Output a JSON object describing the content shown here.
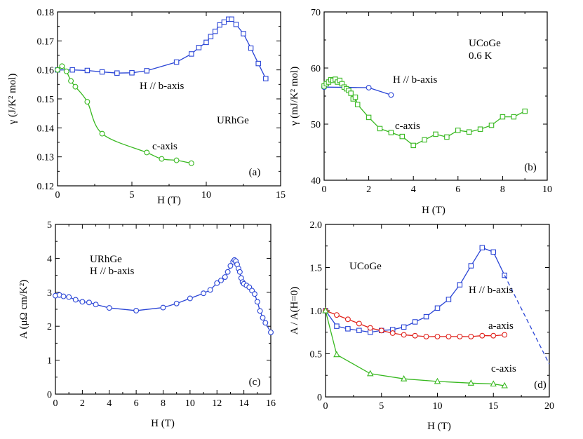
{
  "colors": {
    "blue": "#2a45d6",
    "green": "#37b81f",
    "red": "#e0211b",
    "axis": "#000000"
  },
  "chart_data": [
    {
      "panel": "a",
      "type": "line",
      "xlabel": "H (T)",
      "ylabel": "γ  (J/K² mol)",
      "xlim": [
        0,
        15
      ],
      "ylim": [
        0.12,
        0.18
      ],
      "xticks": [
        "0",
        "5",
        "10",
        "15"
      ],
      "yticks": [
        "0.12",
        "0.13",
        "0.14",
        "0.15",
        "0.16",
        "0.17",
        "0.18"
      ],
      "panel_label": "(a)",
      "annotations": [
        "URhGe",
        "H // b-axis",
        "c-axis"
      ],
      "series": [
        {
          "name": "H // b-axis",
          "color": "blue",
          "marker": "square",
          "smooth": false,
          "x": [
            0,
            1,
            2,
            3,
            4,
            5,
            6,
            8,
            9,
            9.5,
            10,
            10.3,
            10.6,
            10.9,
            11.2,
            11.5,
            11.7,
            12,
            12.5,
            13,
            13.5,
            14
          ],
          "y": [
            0.16,
            0.16,
            0.1598,
            0.1593,
            0.1589,
            0.159,
            0.1597,
            0.1627,
            0.1655,
            0.1677,
            0.1695,
            0.1715,
            0.1733,
            0.1755,
            0.1765,
            0.1775,
            0.1775,
            0.1757,
            0.1725,
            0.1675,
            0.1622,
            0.157
          ]
        },
        {
          "name": "c-axis",
          "color": "green",
          "marker": "circle",
          "smooth": true,
          "x": [
            0,
            0.3,
            0.6,
            0.9,
            1.2,
            2,
            3,
            6,
            7,
            8,
            9
          ],
          "y": [
            0.16,
            0.1613,
            0.1595,
            0.1562,
            0.1542,
            0.149,
            0.138,
            0.1315,
            0.1293,
            0.1288,
            0.1278
          ]
        }
      ]
    },
    {
      "panel": "b",
      "type": "line",
      "xlabel": "H (T)",
      "ylabel": "γ (mJ/K² mol)",
      "xlim": [
        0,
        10
      ],
      "ylim": [
        40,
        70
      ],
      "xticks": [
        "0",
        "2",
        "4",
        "6",
        "8",
        "10"
      ],
      "yticks": [
        "40",
        "50",
        "60",
        "70"
      ],
      "panel_label": "(b)",
      "annotations": [
        "UCoGe",
        "0.6 K",
        "H // b-axis",
        "c-axis"
      ],
      "series": [
        {
          "name": "H // b-axis",
          "color": "blue",
          "marker": "circle",
          "smooth": false,
          "x": [
            0,
            2,
            3
          ],
          "y": [
            56.6,
            56.5,
            55.2
          ]
        },
        {
          "name": "c-axis",
          "color": "green",
          "marker": "square",
          "smooth": false,
          "x": [
            0,
            0.1,
            0.2,
            0.3,
            0.4,
            0.5,
            0.6,
            0.7,
            0.8,
            0.9,
            1.0,
            1.1,
            1.2,
            1.3,
            1.4,
            1.5,
            2,
            2.5,
            3,
            3.5,
            4,
            4.5,
            5,
            5.5,
            6,
            6.5,
            7,
            7.5,
            8,
            8.5,
            9
          ],
          "y": [
            56.8,
            57.2,
            57.5,
            57.9,
            57.8,
            58,
            57.5,
            57.8,
            57.2,
            56.6,
            56.3,
            56,
            55.5,
            54.5,
            54.8,
            53.5,
            51.2,
            49.2,
            48.5,
            47.8,
            46.2,
            47.2,
            48.2,
            47.7,
            48.9,
            48.6,
            49.1,
            49.8,
            51.3,
            51.3,
            52.3
          ]
        }
      ]
    },
    {
      "panel": "c",
      "type": "line",
      "xlabel": "H (T)",
      "ylabel": "A (μΩ cm/K²)",
      "xlim": [
        0,
        16
      ],
      "ylim": [
        0,
        5
      ],
      "xticks": [
        "0",
        "2",
        "4",
        "6",
        "8",
        "10",
        "12",
        "14",
        "16"
      ],
      "yticks": [
        "0",
        "1",
        "2",
        "3",
        "4",
        "5"
      ],
      "panel_label": "(c)",
      "annotations": [
        "URhGe",
        "H // b-axis"
      ],
      "series": [
        {
          "name": "H // b-axis",
          "color": "blue",
          "marker": "circle",
          "smooth": false,
          "x": [
            0,
            0.3,
            0.6,
            1,
            1.5,
            2,
            2.5,
            3,
            4,
            6,
            8,
            9,
            10,
            11,
            11.5,
            12,
            12.3,
            12.6,
            12.8,
            13,
            13.2,
            13.3,
            13.4,
            13.5,
            13.6,
            13.7,
            13.8,
            13.9,
            14,
            14.2,
            14.4,
            14.6,
            14.8,
            15,
            15.2,
            15.4,
            15.6,
            16
          ],
          "y": [
            2.9,
            2.92,
            2.88,
            2.86,
            2.78,
            2.72,
            2.7,
            2.64,
            2.54,
            2.46,
            2.55,
            2.67,
            2.82,
            2.97,
            3.07,
            3.27,
            3.35,
            3.45,
            3.6,
            3.78,
            3.9,
            3.95,
            3.92,
            3.82,
            3.7,
            3.6,
            3.42,
            3.3,
            3.25,
            3.2,
            3.15,
            3.05,
            2.95,
            2.72,
            2.45,
            2.25,
            2.1,
            1.82
          ]
        }
      ]
    },
    {
      "panel": "d",
      "type": "line",
      "xlabel": "H (T)",
      "ylabel": "A / A(H=0)",
      "xlim": [
        0,
        20
      ],
      "ylim": [
        0,
        2.0
      ],
      "xticks": [
        "0",
        "5",
        "10",
        "15",
        "20"
      ],
      "yticks": [
        "0",
        "0.5",
        "1.0",
        "1.5",
        "2.0"
      ],
      "panel_label": "(d)",
      "annotations": [
        "UCoGe",
        "H // b-axis",
        "a-axis",
        "c-axis"
      ],
      "series": [
        {
          "name": "H // b-axis",
          "color": "blue",
          "marker": "square",
          "smooth": false,
          "x": [
            0,
            1,
            2,
            3,
            4,
            5,
            6,
            7,
            8,
            9,
            10,
            11,
            12,
            13,
            14,
            15,
            16
          ],
          "y": [
            1.0,
            0.82,
            0.79,
            0.77,
            0.75,
            0.77,
            0.78,
            0.81,
            0.87,
            0.93,
            1.03,
            1.13,
            1.3,
            1.52,
            1.73,
            1.68,
            1.41
          ]
        },
        {
          "name": "H // b-axis extrapolation",
          "color": "blue",
          "marker": "none",
          "dashed": true,
          "x": [
            16,
            20
          ],
          "y": [
            1.41,
            0.38
          ]
        },
        {
          "name": "a-axis",
          "color": "red",
          "marker": "circle",
          "smooth": true,
          "x": [
            0,
            1,
            2,
            3,
            4,
            5,
            6,
            7,
            8,
            9,
            10,
            11,
            12,
            13,
            14,
            15,
            16
          ],
          "y": [
            1.0,
            0.95,
            0.9,
            0.85,
            0.8,
            0.77,
            0.74,
            0.72,
            0.71,
            0.7,
            0.7,
            0.7,
            0.7,
            0.7,
            0.71,
            0.71,
            0.72
          ]
        },
        {
          "name": "c-axis",
          "color": "green",
          "marker": "triangle",
          "smooth": false,
          "x": [
            0,
            1,
            4,
            7,
            10,
            13,
            15,
            16
          ],
          "y": [
            1.0,
            0.49,
            0.27,
            0.21,
            0.18,
            0.16,
            0.15,
            0.13
          ]
        }
      ]
    }
  ]
}
